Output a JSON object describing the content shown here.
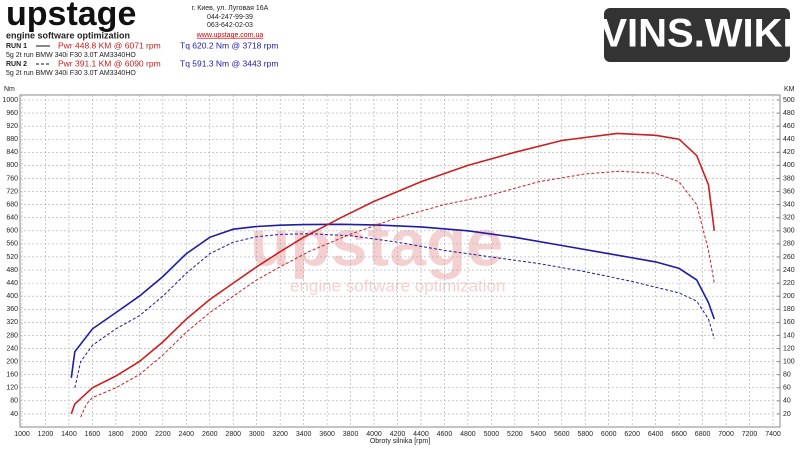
{
  "header": {
    "logo": "upstage",
    "tagline": "engine software optimization",
    "address": [
      "г. Киев, ул. Луговая 16А",
      "044-247-99-39",
      "063-642-02-03",
      "www.upstage.com.ua"
    ],
    "site": "VINS.WIKI",
    "runs": [
      {
        "label": "RUN 1",
        "pwr": "Pwr  448.8 KM @ 6071 rpm",
        "tq": "Tq 620.2 Nm @ 3718 rpm",
        "desc": "5g 2t run BMW 340i F30 3.0T AM3340HO"
      },
      {
        "label": "RUN 2",
        "pwr": "Pwr  391.1 KM @ 6090 rpm",
        "tq": "Tq 591.3 Nm @ 3443 rpm",
        "desc": "5g 2t run BMW 340i F30 3.0T AM3340HO"
      }
    ]
  },
  "chart_data": {
    "type": "line",
    "x_label": "Obroty silnika [rpm]",
    "y_label": "Nm",
    "y2_label": "KM",
    "xlim": [
      1000,
      7400
    ],
    "xticks": [
      1000,
      1200,
      1400,
      1600,
      1800,
      2000,
      2200,
      2400,
      2600,
      2800,
      3000,
      3200,
      3400,
      3600,
      3800,
      4000,
      4200,
      4400,
      4600,
      4800,
      5000,
      5200,
      5400,
      5600,
      5800,
      6000,
      6200,
      6400,
      6600,
      6800,
      7000,
      7200,
      7400
    ],
    "ylim": [
      0,
      1000
    ],
    "yticks": [
      40,
      80,
      120,
      160,
      200,
      240,
      280,
      320,
      360,
      400,
      440,
      480,
      520,
      560,
      600,
      640,
      680,
      720,
      760,
      800,
      840,
      880,
      920,
      960,
      1000
    ],
    "y2lim": [
      0,
      500
    ],
    "y2ticks": [
      20,
      40,
      60,
      80,
      100,
      120,
      140,
      160,
      180,
      200,
      220,
      240,
      260,
      280,
      300,
      320,
      340,
      360,
      380,
      400,
      420,
      440,
      460,
      480,
      500
    ],
    "grid": true,
    "series": [
      {
        "color": "#1c1ca6",
        "dash": false,
        "axis": "y",
        "x": [
          1420,
          1450,
          1600,
          1800,
          2000,
          2200,
          2400,
          2600,
          2800,
          3000,
          3200,
          3400,
          3718,
          4000,
          4400,
          4800,
          5200,
          5600,
          6000,
          6400,
          6600,
          6750,
          6850,
          6900
        ],
        "values": [
          150,
          230,
          300,
          350,
          400,
          460,
          530,
          580,
          605,
          613,
          617,
          619,
          620,
          618,
          612,
          600,
          580,
          555,
          530,
          505,
          485,
          450,
          380,
          330
        ]
      },
      {
        "color": "#cc1f1f",
        "dash": false,
        "axis": "y2",
        "x": [
          1420,
          1450,
          1600,
          1800,
          2000,
          2200,
          2400,
          2600,
          2800,
          3000,
          3200,
          3400,
          3718,
          4000,
          4400,
          4800,
          5200,
          5600,
          6071,
          6400,
          6600,
          6750,
          6850,
          6900
        ],
        "values": [
          20,
          35,
          60,
          78,
          100,
          130,
          165,
          195,
          220,
          245,
          268,
          290,
          320,
          345,
          375,
          400,
          420,
          438,
          449,
          446,
          440,
          415,
          370,
          300
        ]
      },
      {
        "color": "#1c1ca6",
        "dash": true,
        "axis": "y",
        "x": [
          1450,
          1500,
          1600,
          1800,
          2000,
          2200,
          2400,
          2600,
          2800,
          3000,
          3200,
          3443,
          3800,
          4200,
          4600,
          5000,
          5400,
          5800,
          6200,
          6600,
          6750,
          6850,
          6900
        ],
        "values": [
          120,
          200,
          250,
          300,
          340,
          400,
          470,
          530,
          565,
          582,
          589,
          591,
          585,
          565,
          540,
          520,
          500,
          475,
          445,
          410,
          385,
          330,
          270
        ]
      },
      {
        "color": "#cc1f1f",
        "dash": true,
        "axis": "y2",
        "x": [
          1500,
          1550,
          1600,
          1800,
          2000,
          2200,
          2400,
          2600,
          2800,
          3000,
          3200,
          3443,
          3800,
          4200,
          4600,
          5000,
          5400,
          5800,
          6090,
          6400,
          6600,
          6750,
          6850,
          6900
        ],
        "values": [
          15,
          35,
          45,
          60,
          80,
          110,
          145,
          175,
          200,
          225,
          245,
          268,
          295,
          320,
          340,
          355,
          375,
          387,
          391,
          388,
          375,
          340,
          270,
          220
        ]
      }
    ]
  }
}
